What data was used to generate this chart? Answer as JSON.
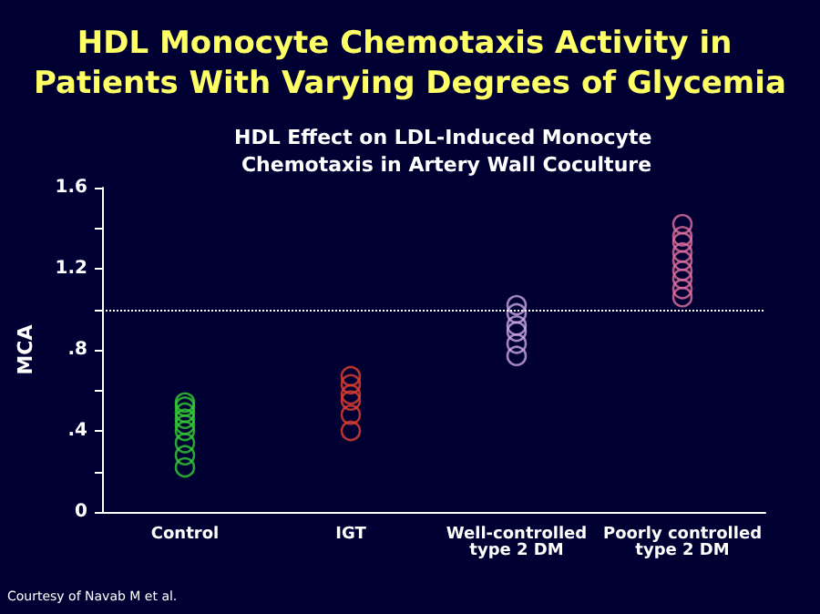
{
  "chart_data": {
    "type": "scatter",
    "title": "HDL Monocyte Chemotaxis Activity in Patients With Varying Degrees of Glycemia",
    "subtitle": "HDL Effect on LDL-Induced Monocyte Chemotaxis in Artery Wall Coculture",
    "ylabel": "MCA",
    "categories": [
      "Control",
      "IGT",
      "Well-controlled\ntype 2 DM",
      "Poorly controlled\ntype 2 DM"
    ],
    "series": [
      {
        "color": "#33cc33",
        "x": [
          "Control",
          "Control",
          "Control",
          "Control",
          "Control",
          "Control",
          "Control",
          "Control",
          "Control"
        ],
        "values": [
          0.22,
          0.28,
          0.34,
          0.4,
          0.43,
          0.46,
          0.49,
          0.52,
          0.54
        ]
      },
      {
        "color": "#e04030",
        "x": [
          "IGT",
          "IGT",
          "IGT",
          "IGT",
          "IGT",
          "IGT"
        ],
        "values": [
          0.4,
          0.48,
          0.55,
          0.58,
          0.63,
          0.67
        ]
      },
      {
        "color": "#c8a8e0",
        "x": [
          "Well-controlled\ntype 2 DM",
          "Well-controlled\ntype 2 DM",
          "Well-controlled\ntype 2 DM",
          "Well-controlled\ntype 2 DM",
          "Well-controlled\ntype 2 DM",
          "Well-controlled\ntype 2 DM"
        ],
        "values": [
          0.77,
          0.83,
          0.89,
          0.92,
          0.98,
          1.02
        ]
      },
      {
        "color": "#e070a0",
        "x": [
          "Poorly controlled\ntype 2 DM",
          "Poorly controlled\ntype 2 DM",
          "Poorly controlled\ntype 2 DM",
          "Poorly controlled\ntype 2 DM",
          "Poorly controlled\ntype 2 DM",
          "Poorly controlled\ntype 2 DM",
          "Poorly controlled\ntype 2 DM",
          "Poorly controlled\ntype 2 DM",
          "Poorly controlled\ntype 2 DM"
        ],
        "values": [
          1.06,
          1.1,
          1.15,
          1.19,
          1.24,
          1.28,
          1.33,
          1.36,
          1.42
        ]
      }
    ],
    "ylim": [
      0,
      1.6
    ],
    "yticks": [
      0,
      {
        "value": 0.2,
        "label": null
      },
      {
        "value": 0.4,
        "label": ".4"
      },
      {
        "value": 0.6,
        "label": null
      },
      {
        "value": 0.8,
        "label": ".8"
      },
      {
        "value": 1,
        "label": null
      },
      {
        "value": 1.2,
        "label": "1.2"
      },
      {
        "value": 1.4,
        "label": null
      },
      1.6
    ],
    "ref_lines": [
      {
        "axis": "y",
        "value": 1,
        "color": "#ffffff",
        "line_style": "dotted"
      }
    ],
    "marker": "circle",
    "grid": false,
    "annotations": [
      "Courtesy of Navab M et al."
    ]
  }
}
